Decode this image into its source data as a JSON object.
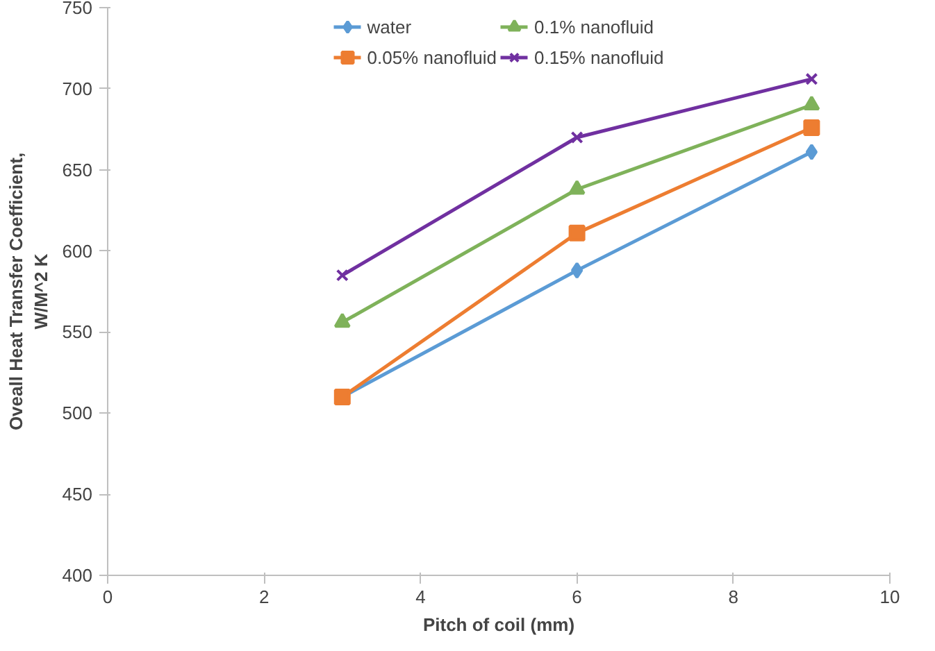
{
  "chart_data": {
    "type": "line",
    "xlabel": "Pitch of coil (mm)",
    "ylabel": "Oveall Heat Transfer Coefficient,\nW/M^2 K",
    "x": [
      3,
      6,
      9
    ],
    "series": [
      {
        "name": "water",
        "color": "#5b9bd5",
        "marker": "diamond",
        "values": [
          510,
          588,
          661
        ]
      },
      {
        "name": "0.05% nanofluid",
        "color": "#ed7d31",
        "marker": "square",
        "values": [
          510,
          611,
          676
        ]
      },
      {
        "name": "0.1% nanofluid",
        "color": "#7fb25a",
        "marker": "triangle",
        "values": [
          556,
          638,
          690
        ]
      },
      {
        "name": "0.15% nanofluid",
        "color": "#7030a0",
        "marker": "cross",
        "values": [
          585,
          670,
          706
        ]
      }
    ],
    "xlim": [
      0,
      10
    ],
    "xticks": [
      0,
      2,
      4,
      6,
      8,
      10
    ],
    "ylim": [
      400,
      750
    ],
    "yticks": [
      400,
      450,
      500,
      550,
      600,
      650,
      700,
      750
    ],
    "grid": false,
    "legend": "top",
    "line_style": "solid"
  }
}
